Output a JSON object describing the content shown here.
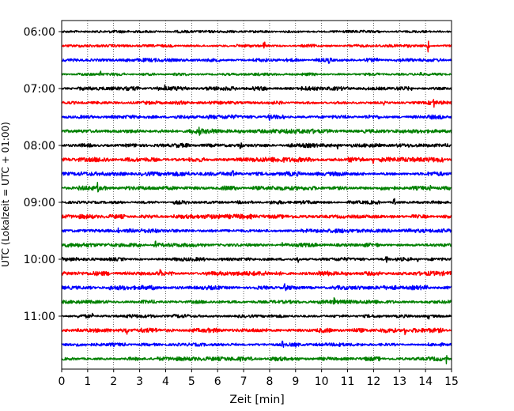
{
  "chart_data": {
    "type": "line",
    "title": "",
    "xlabel": "Zeit  [min]",
    "ylabel": "UTC (Lokalzeit = UTC + 01:00)",
    "xlim": [
      0,
      15
    ],
    "xticks": [
      0,
      1,
      2,
      3,
      4,
      5,
      6,
      7,
      8,
      9,
      10,
      11,
      12,
      13,
      14,
      15
    ],
    "xtick_labels": [
      "0",
      "1",
      "2",
      "3",
      "4",
      "5",
      "6",
      "7",
      "8",
      "9",
      "10",
      "11",
      "12",
      "13",
      "14",
      "15"
    ],
    "ytick_labels": [
      "06:00",
      "07:00",
      "08:00",
      "09:00",
      "10:00",
      "11:00"
    ],
    "grid": "vertical-dotted",
    "trace_interval_minutes": 15,
    "trace_colors": [
      "#000000",
      "#ff0000",
      "#0000ff",
      "#008000"
    ],
    "series": [
      {
        "start": "06:00",
        "color": "#000000",
        "amp": 0.45,
        "spikes": []
      },
      {
        "start": "06:15",
        "color": "#ff0000",
        "amp": 0.5,
        "spikes": [
          [
            7.8,
            2.4
          ],
          [
            14.1,
            2.6
          ]
        ]
      },
      {
        "start": "06:30",
        "color": "#0000ff",
        "amp": 0.6,
        "spikes": [
          [
            10.3,
            1.6
          ]
        ]
      },
      {
        "start": "06:45",
        "color": "#008000",
        "amp": 0.5,
        "spikes": [
          [
            1.5,
            1.8
          ],
          [
            13.8,
            1.6
          ]
        ]
      },
      {
        "start": "07:00",
        "color": "#000000",
        "amp": 0.7,
        "spikes": [
          [
            4.0,
            1.4
          ]
        ]
      },
      {
        "start": "07:15",
        "color": "#ff0000",
        "amp": 0.6,
        "spikes": [
          [
            12.4,
            1.8
          ],
          [
            14.3,
            2.4
          ]
        ]
      },
      {
        "start": "07:30",
        "color": "#0000ff",
        "amp": 0.7,
        "spikes": [
          [
            8.0,
            1.3
          ]
        ]
      },
      {
        "start": "07:45",
        "color": "#008000",
        "amp": 0.8,
        "spikes": [
          [
            5.3,
            1.8
          ]
        ]
      },
      {
        "start": "08:00",
        "color": "#000000",
        "amp": 0.7,
        "spikes": [
          [
            6.9,
            2.2
          ],
          [
            10.6,
            1.6
          ]
        ]
      },
      {
        "start": "08:15",
        "color": "#ff0000",
        "amp": 0.85,
        "spikes": [
          [
            12.0,
            3.0
          ]
        ]
      },
      {
        "start": "08:30",
        "color": "#0000ff",
        "amp": 0.75,
        "spikes": [
          [
            6.6,
            2.4
          ]
        ]
      },
      {
        "start": "08:45",
        "color": "#008000",
        "amp": 0.8,
        "spikes": [
          [
            1.4,
            2.6
          ],
          [
            14.2,
            1.4
          ]
        ]
      },
      {
        "start": "09:00",
        "color": "#000000",
        "amp": 0.6,
        "spikes": [
          [
            12.8,
            2.8
          ],
          [
            9.0,
            1.2
          ]
        ]
      },
      {
        "start": "09:15",
        "color": "#ff0000",
        "amp": 0.8,
        "spikes": [
          [
            7.2,
            1.3
          ]
        ]
      },
      {
        "start": "09:30",
        "color": "#0000ff",
        "amp": 0.75,
        "spikes": [
          [
            9.7,
            2.6
          ],
          [
            2.2,
            1.4
          ],
          [
            13.4,
            1.4
          ]
        ]
      },
      {
        "start": "09:45",
        "color": "#008000",
        "amp": 0.7,
        "spikes": [
          [
            3.6,
            2.4
          ],
          [
            8.5,
            1.6
          ]
        ]
      },
      {
        "start": "10:00",
        "color": "#000000",
        "amp": 0.6,
        "spikes": [
          [
            9.1,
            1.8
          ],
          [
            12.5,
            1.8
          ],
          [
            13.7,
            1.6
          ]
        ]
      },
      {
        "start": "10:15",
        "color": "#ff0000",
        "amp": 0.8,
        "spikes": [
          [
            3.8,
            2.2
          ],
          [
            7.0,
            2.0
          ]
        ]
      },
      {
        "start": "10:30",
        "color": "#0000ff",
        "amp": 0.75,
        "spikes": [
          [
            8.6,
            2.6
          ],
          [
            5.4,
            1.4
          ]
        ]
      },
      {
        "start": "10:45",
        "color": "#008000",
        "amp": 0.65,
        "spikes": [
          [
            10.5,
            1.6
          ]
        ]
      },
      {
        "start": "11:00",
        "color": "#000000",
        "amp": 0.6,
        "spikes": [
          [
            1.2,
            1.2
          ],
          [
            14.1,
            1.4
          ]
        ]
      },
      {
        "start": "11:15",
        "color": "#ff0000",
        "amp": 0.75,
        "spikes": [
          [
            2.5,
            2.0
          ],
          [
            13.2,
            2.0
          ]
        ]
      },
      {
        "start": "11:30",
        "color": "#0000ff",
        "amp": 0.6,
        "spikes": [
          [
            8.5,
            2.2
          ],
          [
            9.0,
            1.8
          ],
          [
            10.7,
            1.6
          ],
          [
            0.6,
            1.4
          ]
        ]
      },
      {
        "start": "11:45",
        "color": "#008000",
        "amp": 0.7,
        "spikes": [
          [
            14.8,
            2.2
          ],
          [
            6.9,
            1.3
          ]
        ]
      }
    ]
  }
}
